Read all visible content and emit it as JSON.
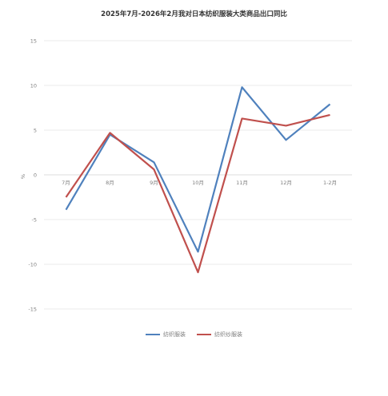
{
  "chart_data": {
    "type": "line",
    "title": "2025年7月-2026年2月我对日本纺织服装大类商品出口同比",
    "ylabel": "%",
    "xlabel": "",
    "categories": [
      "7月",
      "8月",
      "9月",
      "10月",
      "11月",
      "12月",
      "1-2月"
    ],
    "ylim": [
      -15,
      15
    ],
    "yticks": [
      15,
      10,
      5,
      0,
      -5,
      -10,
      -15
    ],
    "grid": true,
    "legend_position": "bottom",
    "series": [
      {
        "name": "纺织服装",
        "color": "#4f81bd",
        "values": [
          -3.9,
          4.5,
          1.4,
          -8.6,
          9.8,
          3.9,
          7.9
        ]
      },
      {
        "name": "纺织纱服装",
        "color": "#c0504d",
        "values": [
          -2.5,
          4.7,
          0.6,
          -10.9,
          6.3,
          5.5,
          6.7
        ]
      }
    ]
  }
}
